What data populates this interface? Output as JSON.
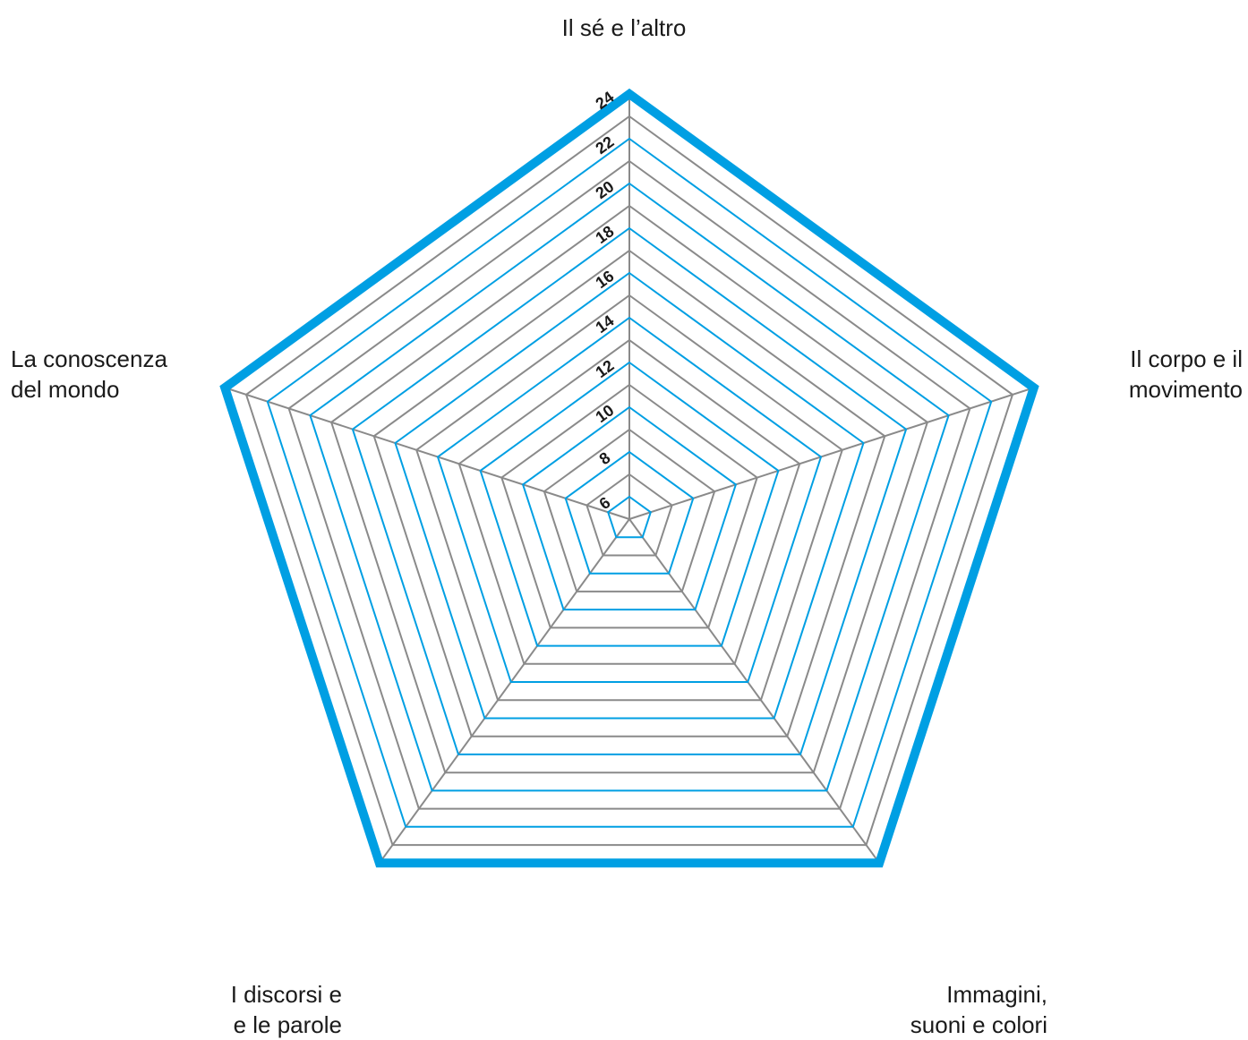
{
  "chart_data": {
    "type": "radar",
    "axes": [
      {
        "lines": [
          "Il sé e l’altro"
        ]
      },
      {
        "lines": [
          "Il corpo e il",
          "movimento"
        ]
      },
      {
        "lines": [
          "Immagini,",
          "suoni e colori"
        ]
      },
      {
        "lines": [
          "I discorsi e",
          "e le parole"
        ]
      },
      {
        "lines": [
          "La conoscenza",
          "del mondo"
        ]
      }
    ],
    "scale": {
      "min": 5,
      "max": 24,
      "step": 1
    },
    "tick_labels": [
      "6",
      "8",
      "10",
      "12",
      "14",
      "16",
      "18",
      "20",
      "22",
      "24"
    ],
    "series": [],
    "grid": true
  },
  "colors": {
    "accent": "#009fe3",
    "grid_gray": "#8a8a8a",
    "text": "#1a1a1a"
  }
}
